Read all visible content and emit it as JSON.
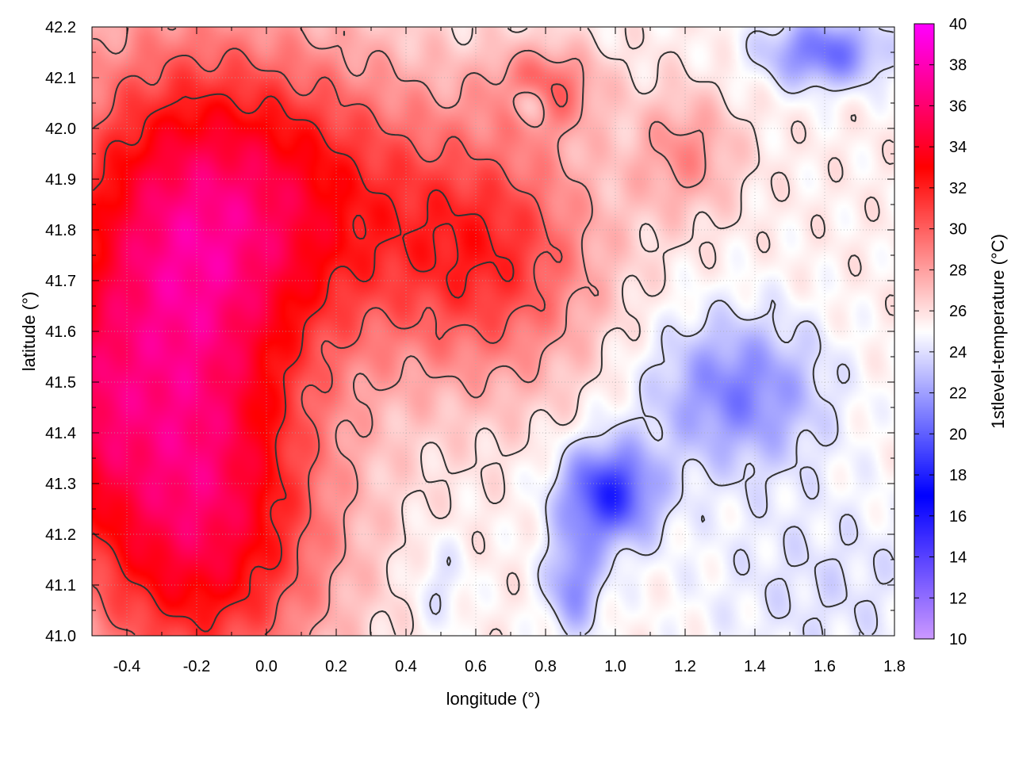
{
  "chart_data": {
    "type": "heatmap",
    "title": "",
    "xlabel": "longitude (°)",
    "ylabel": "latitude (°)",
    "colorbar_label": "1stlevel-temperature (°C)",
    "xlim": [
      -0.5,
      1.8
    ],
    "ylim": [
      41.0,
      42.2
    ],
    "x_ticks": [
      "-0.4",
      "-0.2",
      "0.0",
      "0.2",
      "0.4",
      "0.6",
      "0.8",
      "1.0",
      "1.2",
      "1.4",
      "1.6",
      "1.8"
    ],
    "y_ticks": [
      "41.0",
      "41.1",
      "41.2",
      "41.3",
      "41.4",
      "41.5",
      "41.6",
      "41.7",
      "41.8",
      "41.9",
      "42.0",
      "42.1",
      "42.2"
    ],
    "colorbar_range": [
      10,
      40
    ],
    "colorbar_ticks": [
      "10",
      "12",
      "14",
      "16",
      "18",
      "20",
      "22",
      "24",
      "26",
      "28",
      "30",
      "32",
      "34",
      "36",
      "38",
      "40"
    ],
    "colormap": [
      {
        "value": 10,
        "color": "#cc99ff"
      },
      {
        "value": 17,
        "color": "#0000ff"
      },
      {
        "value": 25,
        "color": "#ffffff"
      },
      {
        "value": 33,
        "color": "#ff0000"
      },
      {
        "value": 40,
        "color": "#ff00ff"
      }
    ],
    "contour_color": "#333333",
    "grid": true,
    "temperature_field": {
      "base": 25.5,
      "features": [
        {
          "x": -0.3,
          "y": 41.6,
          "amp": 8.5,
          "sx": 0.35,
          "sy": 0.5
        },
        {
          "x": 0.05,
          "y": 41.85,
          "amp": 7,
          "sx": 0.45,
          "sy": 0.3
        },
        {
          "x": 0.65,
          "y": 41.75,
          "amp": 5.5,
          "sx": 0.3,
          "sy": 0.25
        },
        {
          "x": -0.15,
          "y": 41.2,
          "amp": 6,
          "sx": 0.35,
          "sy": 0.3
        },
        {
          "x": -0.5,
          "y": 41.45,
          "amp": 3,
          "sx": 0.12,
          "sy": 0.2
        },
        {
          "x": 0.8,
          "y": 42.08,
          "amp": 4,
          "sx": 0.15,
          "sy": 0.08
        },
        {
          "x": 1.2,
          "y": 41.95,
          "amp": 3,
          "sx": 0.15,
          "sy": 0.12
        },
        {
          "x": 0.98,
          "y": 41.28,
          "amp": -7,
          "sx": 0.14,
          "sy": 0.1
        },
        {
          "x": 0.88,
          "y": 41.1,
          "amp": -4,
          "sx": 0.08,
          "sy": 0.1
        },
        {
          "x": 1.35,
          "y": 41.48,
          "amp": -4.5,
          "sx": 0.25,
          "sy": 0.15
        },
        {
          "x": 1.6,
          "y": 42.15,
          "amp": -5,
          "sx": 0.18,
          "sy": 0.07
        },
        {
          "x": 0.75,
          "y": 42.05,
          "amp": -3,
          "sx": 0.06,
          "sy": 0.04
        },
        {
          "x": 1.6,
          "y": 41.1,
          "amp": -1.5,
          "sx": 0.4,
          "sy": 0.2
        },
        {
          "x": 0.5,
          "y": 41.1,
          "amp": -1.5,
          "sx": 0.08,
          "sy": 0.1
        }
      ]
    },
    "contour_levels": [
      24,
      26,
      28,
      30,
      32
    ]
  }
}
